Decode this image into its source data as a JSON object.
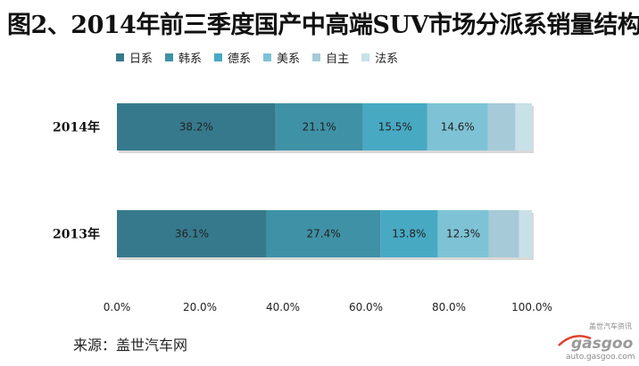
{
  "title": "图2、2014年前三季度国产中高端SUV市场分派系销量结构",
  "source": "来源：盖世汽车网",
  "watermark": {
    "text_top": "盖世汽车资讯",
    "brand": "gasgoo",
    "url": "auto.gasgoo.com"
  },
  "chart_data": {
    "type": "bar",
    "orientation": "horizontal",
    "stacked": true,
    "percent": true,
    "categories": [
      "2014年",
      "2013年"
    ],
    "series": [
      {
        "name": "日系",
        "color": "#37798c",
        "values": [
          38.2,
          36.1
        ],
        "labels": [
          "38.2%",
          "36.1%"
        ]
      },
      {
        "name": "韩系",
        "color": "#3f91a6",
        "values": [
          21.1,
          27.4
        ],
        "labels": [
          "21.1%",
          "27.4%"
        ]
      },
      {
        "name": "德系",
        "color": "#48a9c3",
        "values": [
          15.5,
          13.8
        ],
        "labels": [
          "15.5%",
          "13.8%"
        ]
      },
      {
        "name": "美系",
        "color": "#7ec3d5",
        "values": [
          14.6,
          12.3
        ],
        "labels": [
          "14.6%",
          "12.3%"
        ]
      },
      {
        "name": "自主",
        "color": "#a6cad8",
        "values": [
          6.6,
          7.3
        ],
        "labels": [
          "",
          ""
        ]
      },
      {
        "name": "法系",
        "color": "#c8e0e8",
        "values": [
          4.0,
          3.1
        ],
        "labels": [
          "",
          ""
        ]
      }
    ],
    "xlim": [
      0,
      100
    ],
    "xticks": [
      0,
      20,
      40,
      60,
      80,
      100
    ],
    "xtick_labels": [
      "0.0%",
      "20.0%",
      "40.0%",
      "60.0%",
      "80.0%",
      "100.0%"
    ],
    "grid": false,
    "legend_position": "top"
  }
}
